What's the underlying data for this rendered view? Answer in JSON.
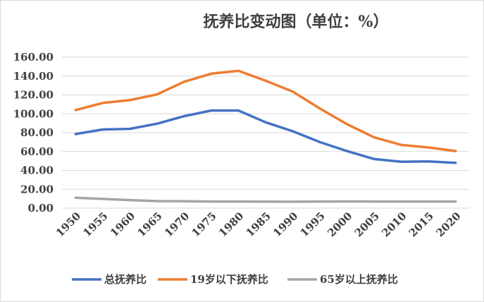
{
  "chart_data": {
    "type": "line",
    "title": "抚养比变动图（单位：%）",
    "xlabel": "",
    "ylabel": "",
    "x": [
      "1950",
      "1955",
      "1960",
      "1965",
      "1970",
      "1975",
      "1980",
      "1985",
      "1990",
      "1995",
      "2000",
      "2005",
      "2010",
      "2015",
      "2020"
    ],
    "yticks": [
      "0.00",
      "20.00",
      "40.00",
      "60.00",
      "80.00",
      "100.00",
      "120.00",
      "140.00",
      "160.00"
    ],
    "ylim": [
      0,
      160
    ],
    "grid": true,
    "legend_position": "bottom",
    "series": [
      {
        "name": "总抚养比",
        "color": "#4472c4",
        "values": [
          78.5,
          83.4,
          84.0,
          89.5,
          97.5,
          103.5,
          103.5,
          91.0,
          81.5,
          70.0,
          60.5,
          52.0,
          49.2,
          49.5,
          48.0
        ]
      },
      {
        "name": "19岁以下抚养比",
        "color": "#ed7d31",
        "values": [
          104.0,
          111.5,
          114.5,
          120.5,
          134.0,
          142.5,
          145.5,
          135.0,
          123.5,
          105.5,
          89.0,
          75.0,
          67.0,
          64.3,
          60.5
        ]
      },
      {
        "name": "65岁以上抚养比",
        "color": "#a5a5a5",
        "values": [
          11.0,
          9.8,
          8.5,
          7.5,
          7.3,
          7.0,
          7.0,
          6.9,
          6.8,
          7.0,
          7.1,
          7.0,
          7.0,
          7.0,
          7.0
        ]
      }
    ]
  }
}
